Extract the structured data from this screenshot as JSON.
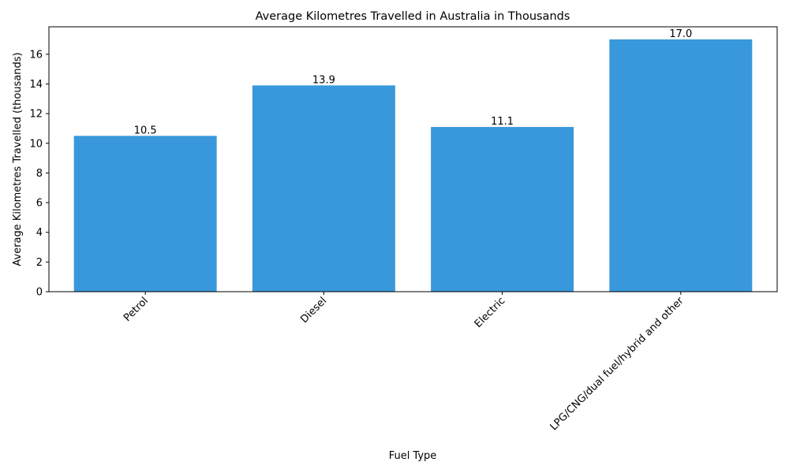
{
  "chart_data": {
    "type": "bar",
    "title": "Average Kilometres Travelled in Australia in Thousands",
    "xlabel": "Fuel Type",
    "ylabel": "Average Kilometres Travelled (thousands)",
    "categories": [
      "Petrol",
      "Diesel",
      "Electric",
      "LPG/CNG/dual fuel/hybrid and other"
    ],
    "values": [
      10.5,
      13.9,
      11.1,
      17.0
    ],
    "data_labels": [
      "10.5",
      "13.9",
      "11.1",
      "17.0"
    ],
    "ylim": [
      0,
      17.85
    ],
    "yticks": [
      0,
      2,
      4,
      6,
      8,
      10,
      12,
      14,
      16
    ],
    "grid": false,
    "bar_color": "#3898db"
  }
}
